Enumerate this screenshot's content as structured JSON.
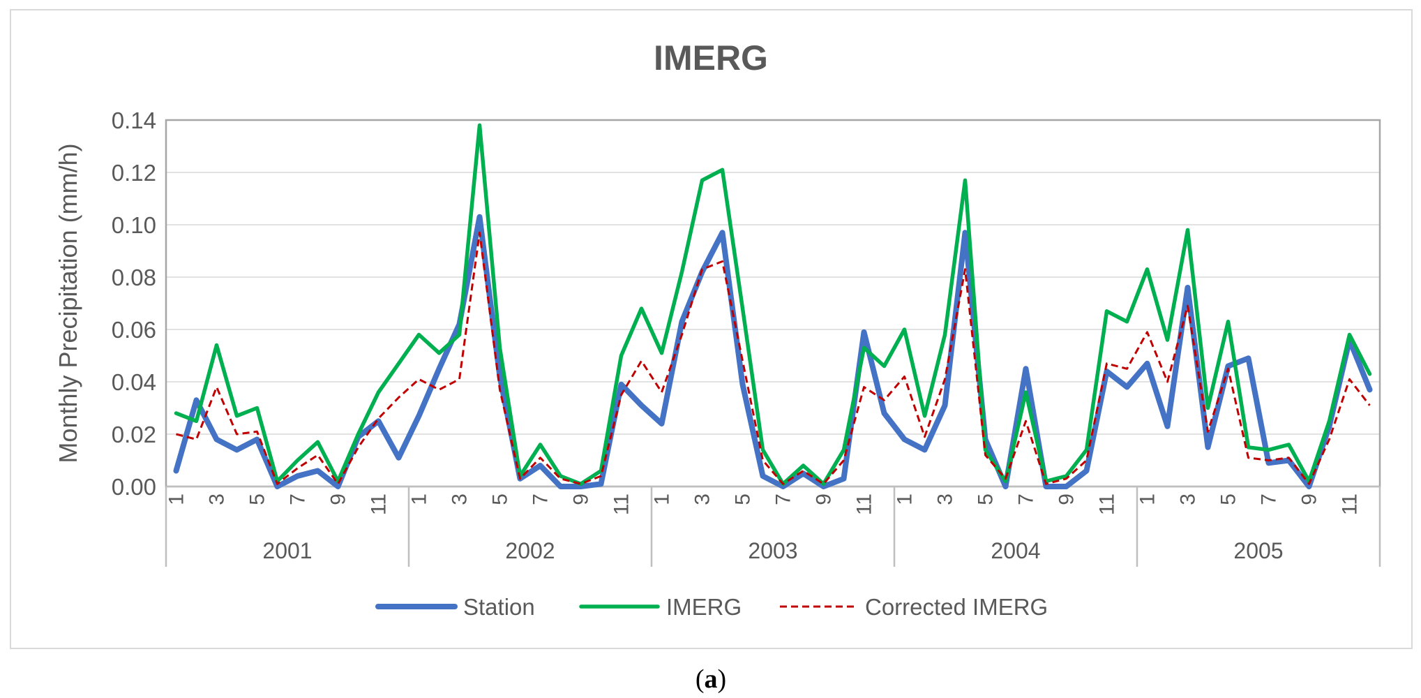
{
  "chart_data": {
    "type": "line",
    "title": "IMERG",
    "ylabel": "Monthly Precipitation (mm/h)",
    "xlabel": "",
    "ylim": [
      0,
      0.14
    ],
    "yticks": [
      0.0,
      0.02,
      0.04,
      0.06,
      0.08,
      0.1,
      0.12,
      0.14
    ],
    "ytick_labels": [
      "0.00",
      "0.02",
      "0.04",
      "0.06",
      "0.08",
      "0.10",
      "0.12",
      "0.14"
    ],
    "years": [
      "2001",
      "2002",
      "2003",
      "2004",
      "2005"
    ],
    "month_tick_labels": [
      "1",
      "3",
      "5",
      "7",
      "9",
      "11"
    ],
    "months_per_year": 12,
    "grid": true,
    "legend_position": "bottom",
    "series": [
      {
        "name": "Station",
        "color": "#4472c4",
        "style": "solid",
        "values": [
          0.006,
          0.033,
          0.018,
          0.014,
          0.018,
          0.0,
          0.004,
          0.006,
          0.0,
          0.019,
          0.025,
          0.011,
          0.027,
          0.045,
          0.062,
          0.103,
          0.042,
          0.003,
          0.008,
          0.0,
          0.0,
          0.001,
          0.039,
          0.031,
          0.024,
          0.063,
          0.082,
          0.097,
          0.039,
          0.004,
          0.0,
          0.005,
          0.0,
          0.003,
          0.059,
          0.028,
          0.018,
          0.014,
          0.031,
          0.097,
          0.018,
          0.0,
          0.045,
          0.0,
          0.0,
          0.006,
          0.044,
          0.038,
          0.047,
          0.023,
          0.076,
          0.015,
          0.046,
          0.049,
          0.009,
          0.01,
          0.0,
          0.023,
          0.056,
          0.037
        ]
      },
      {
        "name": "IMERG",
        "color": "#00b050",
        "style": "solid",
        "values": [
          0.028,
          0.025,
          0.054,
          0.027,
          0.03,
          0.002,
          0.01,
          0.017,
          0.002,
          0.02,
          0.036,
          0.047,
          0.058,
          0.051,
          0.058,
          0.138,
          0.053,
          0.004,
          0.016,
          0.004,
          0.001,
          0.006,
          0.05,
          0.068,
          0.051,
          0.082,
          0.117,
          0.121,
          0.068,
          0.014,
          0.001,
          0.008,
          0.001,
          0.014,
          0.053,
          0.046,
          0.06,
          0.027,
          0.058,
          0.117,
          0.014,
          0.002,
          0.036,
          0.002,
          0.004,
          0.014,
          0.067,
          0.063,
          0.083,
          0.056,
          0.098,
          0.03,
          0.063,
          0.015,
          0.014,
          0.016,
          0.002,
          0.025,
          0.058,
          0.043
        ]
      },
      {
        "name": "Corrected IMERG",
        "color": "#c00000",
        "style": "dashed",
        "values": [
          0.02,
          0.018,
          0.038,
          0.02,
          0.021,
          0.001,
          0.007,
          0.012,
          0.001,
          0.015,
          0.026,
          0.034,
          0.041,
          0.037,
          0.041,
          0.097,
          0.037,
          0.003,
          0.011,
          0.003,
          0.001,
          0.004,
          0.035,
          0.048,
          0.036,
          0.058,
          0.083,
          0.086,
          0.048,
          0.01,
          0.001,
          0.006,
          0.001,
          0.01,
          0.038,
          0.033,
          0.042,
          0.019,
          0.041,
          0.083,
          0.012,
          0.003,
          0.025,
          0.001,
          0.003,
          0.01,
          0.047,
          0.045,
          0.059,
          0.04,
          0.069,
          0.021,
          0.045,
          0.011,
          0.01,
          0.011,
          0.001,
          0.018,
          0.041,
          0.031
        ]
      }
    ]
  },
  "caption": {
    "open": "(",
    "letter": "a",
    "close": ")"
  }
}
